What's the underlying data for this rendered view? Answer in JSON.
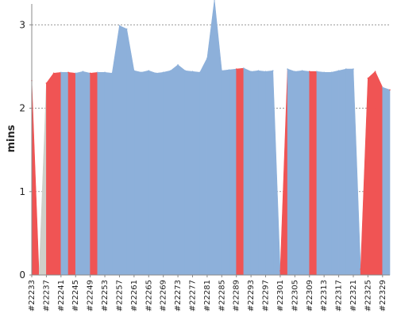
{
  "chart_data": {
    "type": "area",
    "ylabel": "mins",
    "xlabel": "",
    "ylim": [
      0,
      3.25
    ],
    "yticks": [
      0,
      1,
      2,
      3
    ],
    "grid": true,
    "colors": {
      "area": "#8db0da",
      "fail": "#f05454",
      "pending": "#cfcfc9",
      "grid": "#888888"
    },
    "builds": [
      22233,
      22235,
      22237,
      22239,
      22241,
      22243,
      22245,
      22247,
      22249,
      22251,
      22253,
      22255,
      22257,
      22259,
      22261,
      22263,
      22265,
      22267,
      22269,
      22271,
      22273,
      22275,
      22277,
      22279,
      22281,
      22283,
      22285,
      22287,
      22289,
      22291,
      22293,
      22295,
      22297,
      22299,
      22301,
      22303,
      22305,
      22307,
      22309,
      22311,
      22313,
      22315,
      22317,
      22319,
      22321,
      22323,
      22325,
      22327,
      22329,
      22331
    ],
    "tick_labels": [
      "#22233",
      "#22237",
      "#22241",
      "#22245",
      "#22249",
      "#22253",
      "#22257",
      "#22261",
      "#22265",
      "#22269",
      "#22273",
      "#22277",
      "#22281",
      "#22285",
      "#22289",
      "#22293",
      "#22297",
      "#22301",
      "#22305",
      "#22309",
      "#22313",
      "#22317",
      "#22321",
      "#22325",
      "#22329"
    ],
    "values": [
      2.33,
      0.0,
      2.3,
      2.42,
      2.43,
      2.43,
      2.42,
      2.44,
      2.42,
      2.43,
      2.43,
      2.42,
      2.99,
      2.95,
      2.45,
      2.43,
      2.45,
      2.42,
      2.43,
      2.45,
      2.52,
      2.45,
      2.44,
      2.43,
      2.6,
      3.3,
      2.45,
      2.46,
      2.47,
      2.48,
      2.44,
      2.45,
      2.44,
      2.45,
      0.05,
      2.47,
      2.44,
      2.45,
      2.44,
      2.44,
      2.43,
      2.43,
      2.45,
      2.47,
      2.47,
      0.07,
      2.36,
      2.44,
      2.25,
      2.22
    ],
    "status": [
      "fail",
      "pending",
      "fail",
      "fail",
      "ok",
      "fail",
      "ok",
      "ok",
      "fail",
      "ok",
      "ok",
      "ok",
      "ok",
      "ok",
      "ok",
      "ok",
      "ok",
      "ok",
      "ok",
      "ok",
      "ok",
      "ok",
      "ok",
      "ok",
      "ok",
      "ok",
      "ok",
      "ok",
      "fail",
      "ok",
      "ok",
      "ok",
      "ok",
      "ok",
      "fail",
      "ok",
      "ok",
      "ok",
      "fail",
      "ok",
      "ok",
      "ok",
      "ok",
      "ok",
      "ok",
      "fail",
      "fail",
      "fail",
      "ok",
      "fail"
    ]
  }
}
